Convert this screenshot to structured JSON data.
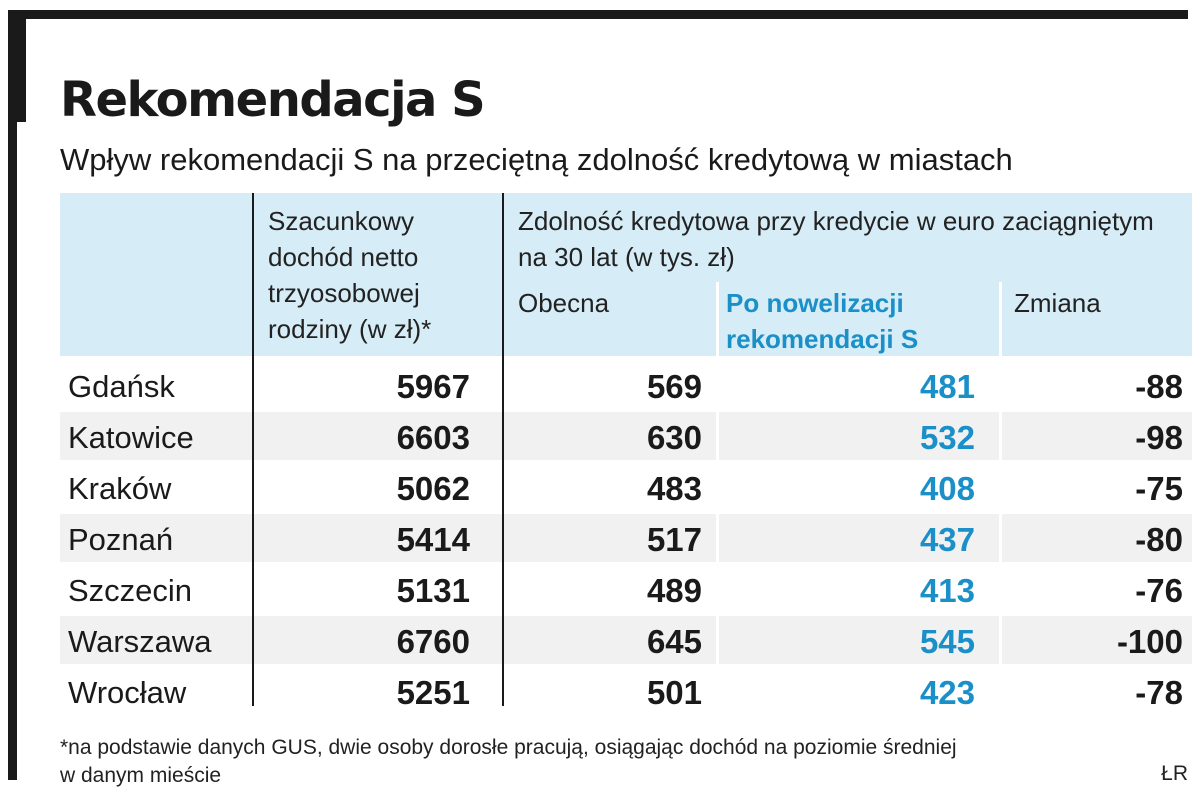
{
  "title": "Rekomendacja S",
  "subtitle": "Wpływ rekomendacji S na przeciętną zdolność kredytową w miastach",
  "colors": {
    "accent": "#1a8fc8",
    "header_bg": "#d6ecf6",
    "stripe_bg": "#f1f1f1",
    "text": "#1a1a1a"
  },
  "chart_data": {
    "type": "table",
    "columns": {
      "city": "",
      "income": "Szacunkowy dochód netto trzyosobowej rodziny (w zł)*",
      "group": "Zdolność kredytowa przy kredycie w euro zaciągniętym na 30 lat (w tys. zł)",
      "current": "Obecna",
      "after": "Po nowelizacji rekomendacji S",
      "change": "Zmiana"
    },
    "rows": [
      {
        "city": "Gdańsk",
        "income": "5967",
        "current": "569",
        "after": "481",
        "change": "-88"
      },
      {
        "city": "Katowice",
        "income": "6603",
        "current": "630",
        "after": "532",
        "change": "-98"
      },
      {
        "city": "Kraków",
        "income": "5062",
        "current": "483",
        "after": "408",
        "change": "-75"
      },
      {
        "city": "Poznań",
        "income": "5414",
        "current": "517",
        "after": "437",
        "change": "-80"
      },
      {
        "city": "Szczecin",
        "income": "5131",
        "current": "489",
        "after": "413",
        "change": "-76"
      },
      {
        "city": "Warszawa",
        "income": "6760",
        "current": "645",
        "after": "545",
        "change": "-100"
      },
      {
        "city": "Wrocław",
        "income": "5251",
        "current": "501",
        "after": "423",
        "change": "-78"
      }
    ]
  },
  "footnote": "*na podstawie danych GUS, dwie osoby dorosłe pracują, osiągając dochód na poziomie średniej w danym mieście",
  "credit": "ŁR"
}
